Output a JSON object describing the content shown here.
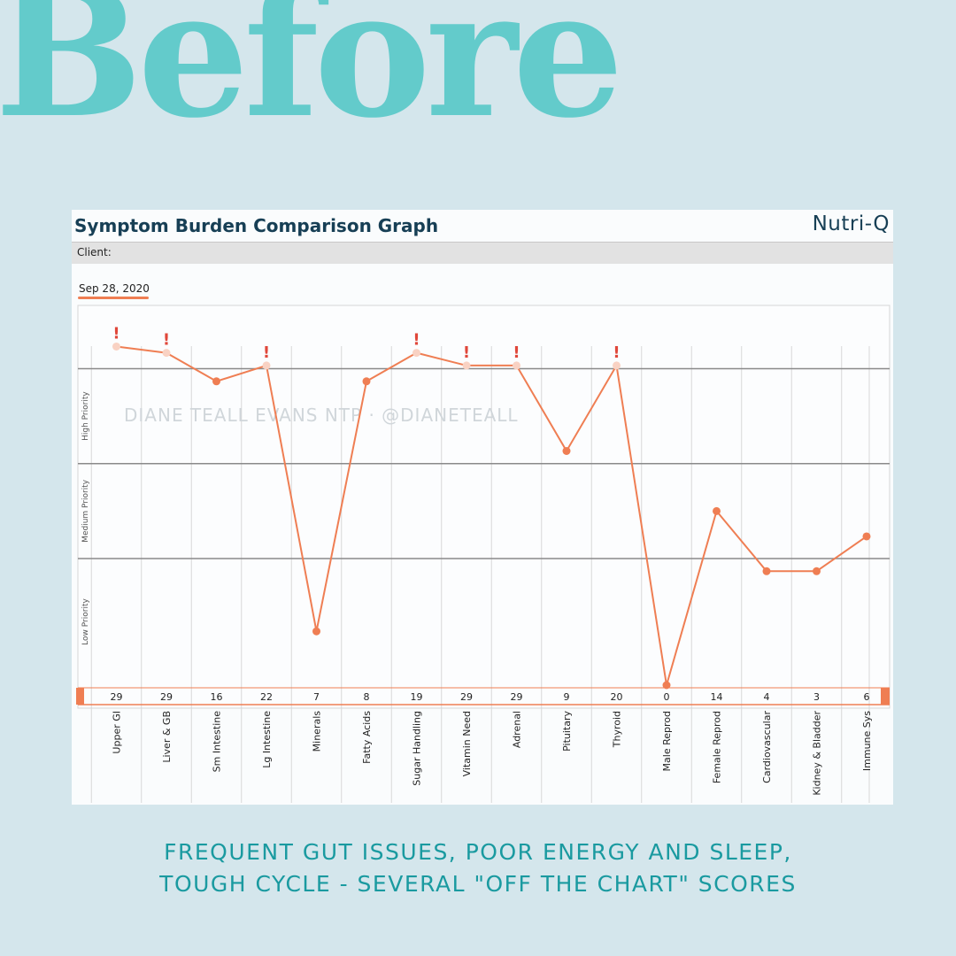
{
  "heading": "Before",
  "card": {
    "title": "Symptom Burden Comparison Graph",
    "brand": "Nutri-Q",
    "client_label": "Client:",
    "date": "Sep 28, 2020",
    "watermark": "DIANE TEALL EVANS NTP · @DIANETEALL"
  },
  "chart_data": {
    "type": "line",
    "categories": [
      "Upper GI",
      "Liver & GB",
      "Sm Intestine",
      "Lg Intestine",
      "Minerals",
      "Fatty Acids",
      "Sugar Handling",
      "Vitamin Need",
      "Adrenal",
      "Pituitary",
      "Thyroid",
      "Male Reprod",
      "Female Reprod",
      "Cardiovascular",
      "Kidney & Bladder",
      "Immune Sys"
    ],
    "score_labels": [
      "29",
      "29",
      "16",
      "22",
      "7",
      "8",
      "19",
      "29",
      "29",
      "9",
      "20",
      "0",
      "14",
      "4",
      "3",
      "6"
    ],
    "y_levels": [
      107,
      105,
      96,
      101,
      17,
      96,
      105,
      101,
      101,
      74,
      101,
      0,
      55,
      36,
      36,
      47
    ],
    "over_chart": [
      true,
      true,
      false,
      true,
      false,
      false,
      true,
      true,
      true,
      false,
      true,
      false,
      false,
      false,
      false,
      false
    ],
    "y_bands": [
      "Low Priority",
      "Medium Priority",
      "High Priority"
    ],
    "ylim": [
      0,
      120
    ],
    "band_boundaries": [
      40,
      70,
      100
    ],
    "colors": {
      "line": "#ef7e53",
      "over_chart_point": "#f9d2c3",
      "alert": "#e0473a"
    }
  },
  "footer": {
    "line1": "FREQUENT GUT ISSUES, POOR ENERGY AND SLEEP,",
    "line2": "TOUGH CYCLE - SEVERAL \"OFF THE CHART\" SCORES"
  }
}
